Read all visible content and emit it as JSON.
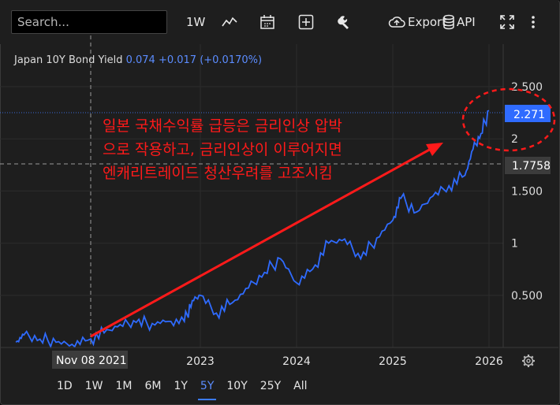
{
  "toolbar": {
    "search_placeholder": "Search...",
    "interval_label": "1W",
    "export_label": "Export",
    "api_label": "API",
    "icons": [
      "line-chart-icon",
      "calendar-icon",
      "add-indicator-icon",
      "wrench-icon",
      "cloud-export-icon",
      "database-icon",
      "fullscreen-icon",
      "more-icon"
    ]
  },
  "legend": {
    "name": "Japan 10Y Bond Yield",
    "value": "0.074",
    "change": "+0.017 (+0.0170%)"
  },
  "annotation": {
    "lines": [
      "일본 국채수익률 급등은 금리인상 압박",
      "으로 작용하고, 금리인상이 이루어지면",
      "엔캐리트레이드 청산우려를 고조시킴"
    ],
    "color": "#ff1a1a"
  },
  "crosshair": {
    "date_label": "Nov 08 2021",
    "price_label": "1.7758"
  },
  "last_price_label": "2.271",
  "range_buttons": [
    "1D",
    "1W",
    "1M",
    "6M",
    "1Y",
    "5Y",
    "10Y",
    "25Y",
    "All"
  ],
  "selected_range": "5Y",
  "colors": {
    "series": "#2f6bff",
    "price_tag": "#2f6bff",
    "annotation": "#ff1a1a",
    "selected": "#5b8cff"
  },
  "chart_data": {
    "type": "line",
    "series": [
      {
        "name": "Japan 10Y Bond Yield",
        "x": [
          "2021-02",
          "2021-03",
          "2021-05",
          "2021-07",
          "2021-09",
          "2021-11",
          "2022-01",
          "2022-03",
          "2022-05",
          "2022-07",
          "2022-09",
          "2022-11",
          "2022-12",
          "2023-01",
          "2023-03",
          "2023-05",
          "2023-07",
          "2023-09",
          "2023-11",
          "2024-01",
          "2024-03",
          "2024-05",
          "2024-07",
          "2024-09",
          "2024-11",
          "2025-01",
          "2025-02",
          "2025-04",
          "2025-06",
          "2025-08",
          "2025-10",
          "2025-11",
          "2025-12",
          "2026-01"
        ],
        "values": [
          0.05,
          0.12,
          0.08,
          0.05,
          0.03,
          0.07,
          0.14,
          0.22,
          0.24,
          0.23,
          0.25,
          0.25,
          0.45,
          0.5,
          0.33,
          0.43,
          0.57,
          0.72,
          0.85,
          0.62,
          0.75,
          1.0,
          1.04,
          0.85,
          1.05,
          1.22,
          1.43,
          1.3,
          1.45,
          1.55,
          1.65,
          1.9,
          2.05,
          2.271
        ]
      }
    ],
    "y_ticks": [
      "2.500",
      "2",
      "1.500",
      "1",
      "0.500"
    ],
    "x_ticks": [
      "2023",
      "2024",
      "2025",
      "2026"
    ],
    "ylim": [
      0,
      2.6
    ],
    "grid": true
  }
}
